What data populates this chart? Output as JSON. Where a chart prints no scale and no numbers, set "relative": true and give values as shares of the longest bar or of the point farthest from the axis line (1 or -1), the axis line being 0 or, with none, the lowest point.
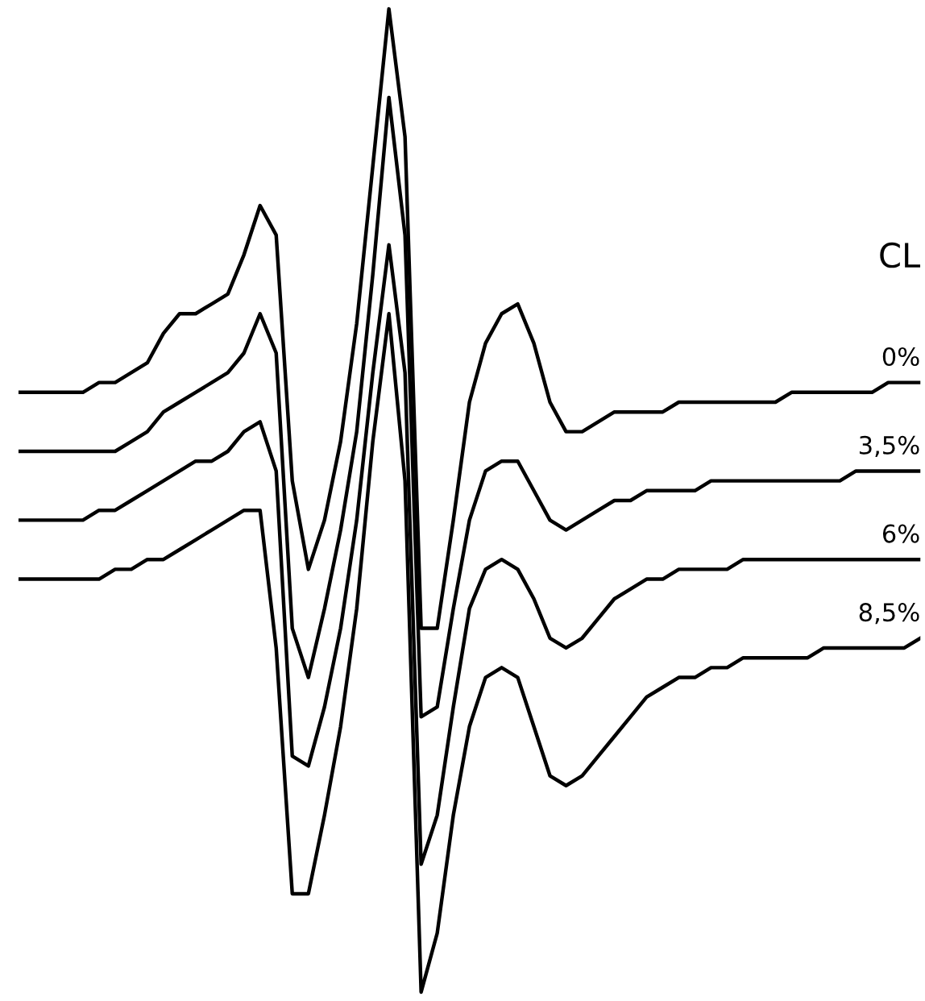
{
  "chart_data": {
    "type": "line",
    "relative": true,
    "legend_title": "CL",
    "legend": false,
    "tick_labels": false,
    "line_style": "solid",
    "marker": "none",
    "categories": [
      null,
      null,
      null,
      null,
      null,
      null,
      null,
      null,
      null,
      null,
      null,
      null,
      null,
      null,
      null,
      null,
      null,
      null,
      null,
      null,
      null,
      null,
      null,
      null,
      null,
      null,
      null,
      null,
      null,
      null,
      null,
      null,
      null,
      null,
      null,
      null,
      null,
      null,
      null,
      null,
      null,
      null,
      null,
      null,
      null,
      null,
      null,
      null,
      null,
      null,
      null,
      null,
      null,
      null,
      null,
      null,
      null
    ],
    "series": [
      {
        "name": "0%",
        "color": "#000000",
        "values": [
          0.61,
          0.61,
          0.61,
          0.61,
          0.61,
          0.62,
          0.62,
          0.63,
          0.64,
          0.67,
          0.69,
          0.69,
          0.7,
          0.71,
          0.75,
          0.8,
          0.77,
          0.52,
          0.43,
          0.48,
          0.56,
          0.68,
          0.84,
          1.0,
          0.87,
          0.37,
          0.37,
          0.48,
          0.6,
          0.66,
          0.69,
          0.7,
          0.66,
          0.6,
          0.57,
          0.57,
          0.58,
          0.59,
          0.59,
          0.59,
          0.59,
          0.6,
          0.6,
          0.6,
          0.6,
          0.6,
          0.6,
          0.6,
          0.61,
          0.61,
          0.61,
          0.61,
          0.61,
          0.61,
          0.62,
          0.62,
          0.62
        ]
      },
      {
        "name": "3,5%",
        "color": "#000000",
        "values": [
          0.55,
          0.55,
          0.55,
          0.55,
          0.55,
          0.55,
          0.55,
          0.56,
          0.57,
          0.59,
          0.6,
          0.61,
          0.62,
          0.63,
          0.65,
          0.69,
          0.65,
          0.37,
          0.32,
          0.39,
          0.47,
          0.57,
          0.73,
          0.91,
          0.77,
          0.28,
          0.29,
          0.39,
          0.48,
          0.53,
          0.54,
          0.54,
          0.51,
          0.48,
          0.47,
          0.48,
          0.49,
          0.5,
          0.5,
          0.51,
          0.51,
          0.51,
          0.51,
          0.52,
          0.52,
          0.52,
          0.52,
          0.52,
          0.52,
          0.52,
          0.52,
          0.52,
          0.53,
          0.53,
          0.53,
          0.53,
          0.53
        ]
      },
      {
        "name": "6%",
        "color": "#000000",
        "values": [
          0.48,
          0.48,
          0.48,
          0.48,
          0.48,
          0.49,
          0.49,
          0.5,
          0.51,
          0.52,
          0.53,
          0.54,
          0.54,
          0.55,
          0.57,
          0.58,
          0.53,
          0.24,
          0.23,
          0.29,
          0.37,
          0.48,
          0.63,
          0.76,
          0.63,
          0.13,
          0.18,
          0.29,
          0.39,
          0.43,
          0.44,
          0.43,
          0.4,
          0.36,
          0.35,
          0.36,
          0.38,
          0.4,
          0.41,
          0.42,
          0.42,
          0.43,
          0.43,
          0.43,
          0.43,
          0.44,
          0.44,
          0.44,
          0.44,
          0.44,
          0.44,
          0.44,
          0.44,
          0.44,
          0.44,
          0.44,
          0.44
        ]
      },
      {
        "name": "8,5%",
        "color": "#000000",
        "values": [
          0.42,
          0.42,
          0.42,
          0.42,
          0.42,
          0.42,
          0.43,
          0.43,
          0.44,
          0.44,
          0.45,
          0.46,
          0.47,
          0.48,
          0.49,
          0.49,
          0.35,
          0.1,
          0.1,
          0.18,
          0.27,
          0.39,
          0.56,
          0.69,
          0.52,
          0.0,
          0.06,
          0.18,
          0.27,
          0.32,
          0.33,
          0.32,
          0.27,
          0.22,
          0.21,
          0.22,
          0.24,
          0.26,
          0.28,
          0.3,
          0.31,
          0.32,
          0.32,
          0.33,
          0.33,
          0.34,
          0.34,
          0.34,
          0.34,
          0.34,
          0.35,
          0.35,
          0.35,
          0.35,
          0.35,
          0.35,
          0.36
        ]
      }
    ]
  }
}
